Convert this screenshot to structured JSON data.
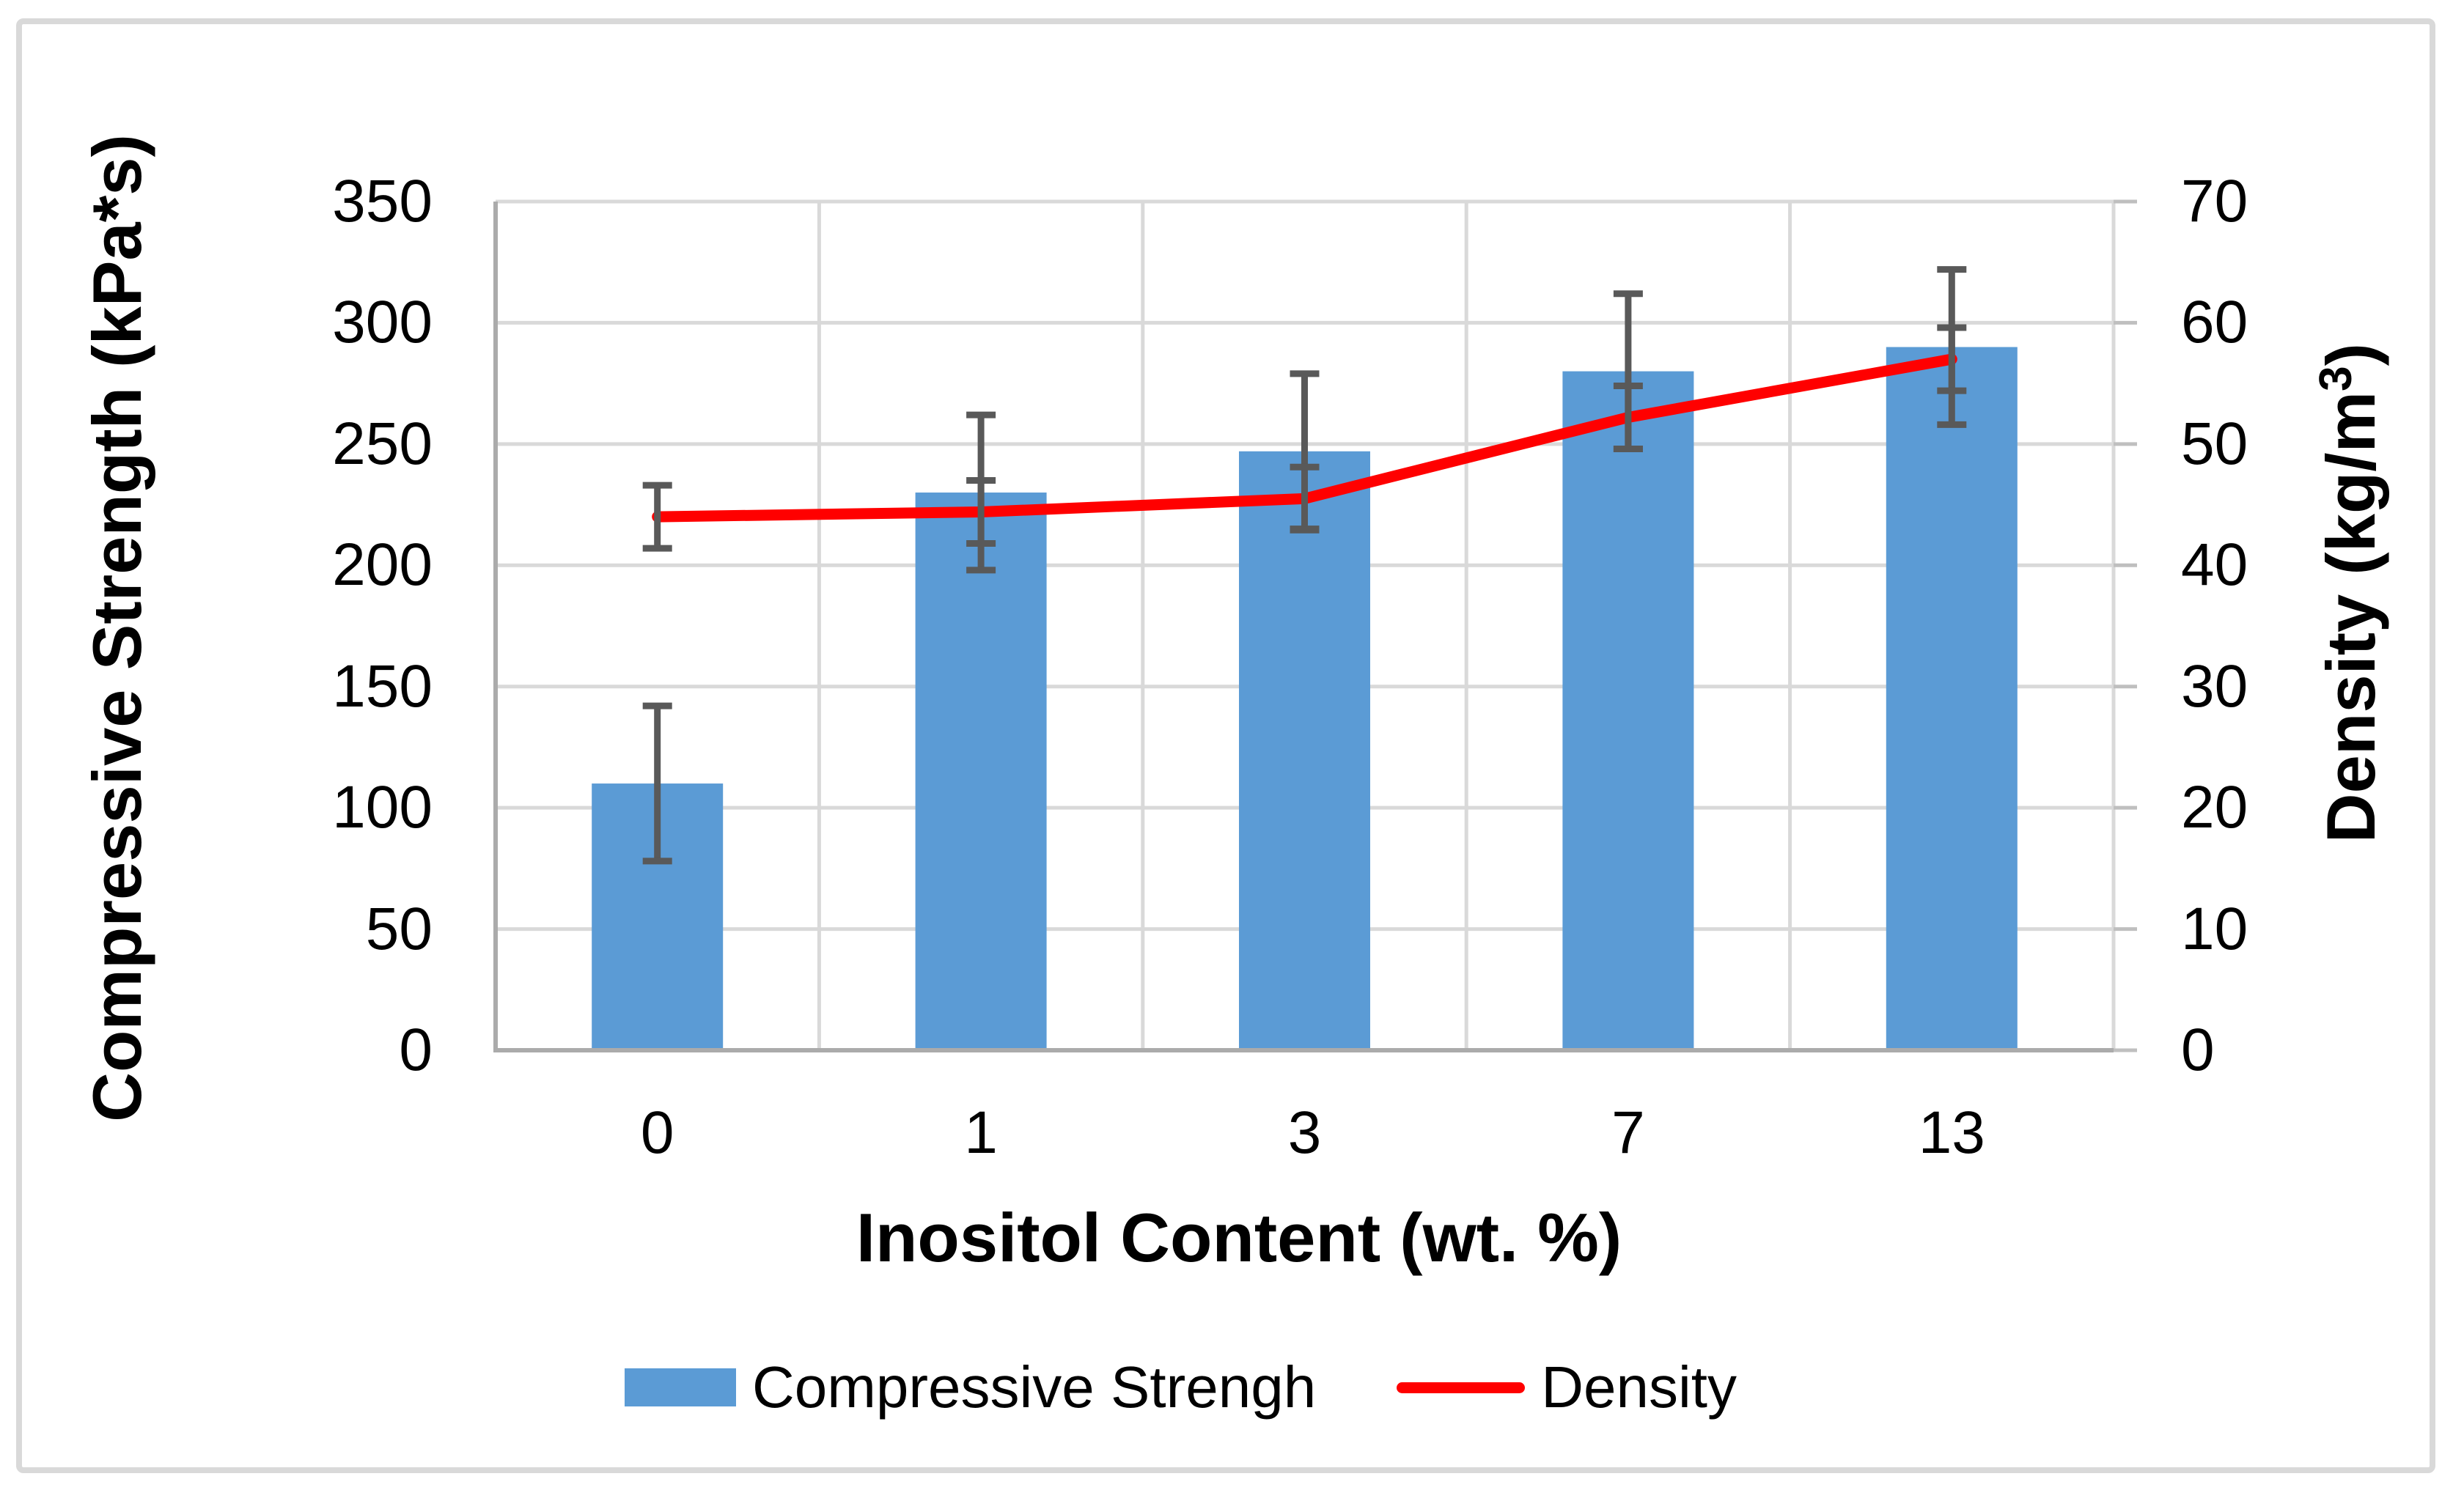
{
  "chart_data": {
    "type": "bar",
    "subtype": "bar-line-combo-dual-axis",
    "categories": [
      "0",
      "1",
      "3",
      "7",
      "13"
    ],
    "series": [
      {
        "name": "Compressive Strengh",
        "type": "bar",
        "axis": "left",
        "color": "#5B9BD5",
        "values": [
          110,
          230,
          247,
          280,
          290
        ],
        "error_plus": [
          32,
          32,
          32,
          32,
          32
        ],
        "error_minus": [
          32,
          32,
          32,
          32,
          32
        ]
      },
      {
        "name": "Density",
        "type": "line",
        "axis": "right",
        "color": "#FF0000",
        "values": [
          44,
          44.4,
          45.5,
          52.2,
          57
        ],
        "error_plus": [
          2.6,
          2.6,
          2.6,
          2.6,
          2.6
        ],
        "error_minus": [
          2.6,
          2.6,
          2.6,
          2.6,
          2.6
        ]
      }
    ],
    "title": "",
    "xlabel": "Inositol Content (wt. %)",
    "left_axis": {
      "title": "Compressive Strength (kPa*s)",
      "min": 0,
      "max": 350,
      "step": 50,
      "ticks": [
        "350",
        "300",
        "250",
        "200",
        "150",
        "100",
        "50",
        "0"
      ]
    },
    "right_axis": {
      "title_prefix": "Density (kg/m",
      "title_sup": "3",
      "title_suffix": ")",
      "min": 0,
      "max": 70,
      "step": 10,
      "ticks": [
        "70",
        "60",
        "50",
        "40",
        "30",
        "20",
        "10",
        "0"
      ]
    },
    "legend": {
      "position": "bottom",
      "entries": [
        {
          "label": "Compressive Strengh",
          "swatch": "bar",
          "color": "#5B9BD5"
        },
        {
          "label": "Density",
          "swatch": "line",
          "color": "#FF0000"
        }
      ]
    },
    "grid": "on",
    "colors": {
      "bar": "#5B9BD5",
      "line": "#FF0000",
      "error_bar": "#595959",
      "gridline": "#D9D9D9",
      "axis_line": "#ABABAB",
      "tick_mark": "#BFBFBF",
      "border": "#D9D9D9",
      "text": "#000000"
    }
  }
}
